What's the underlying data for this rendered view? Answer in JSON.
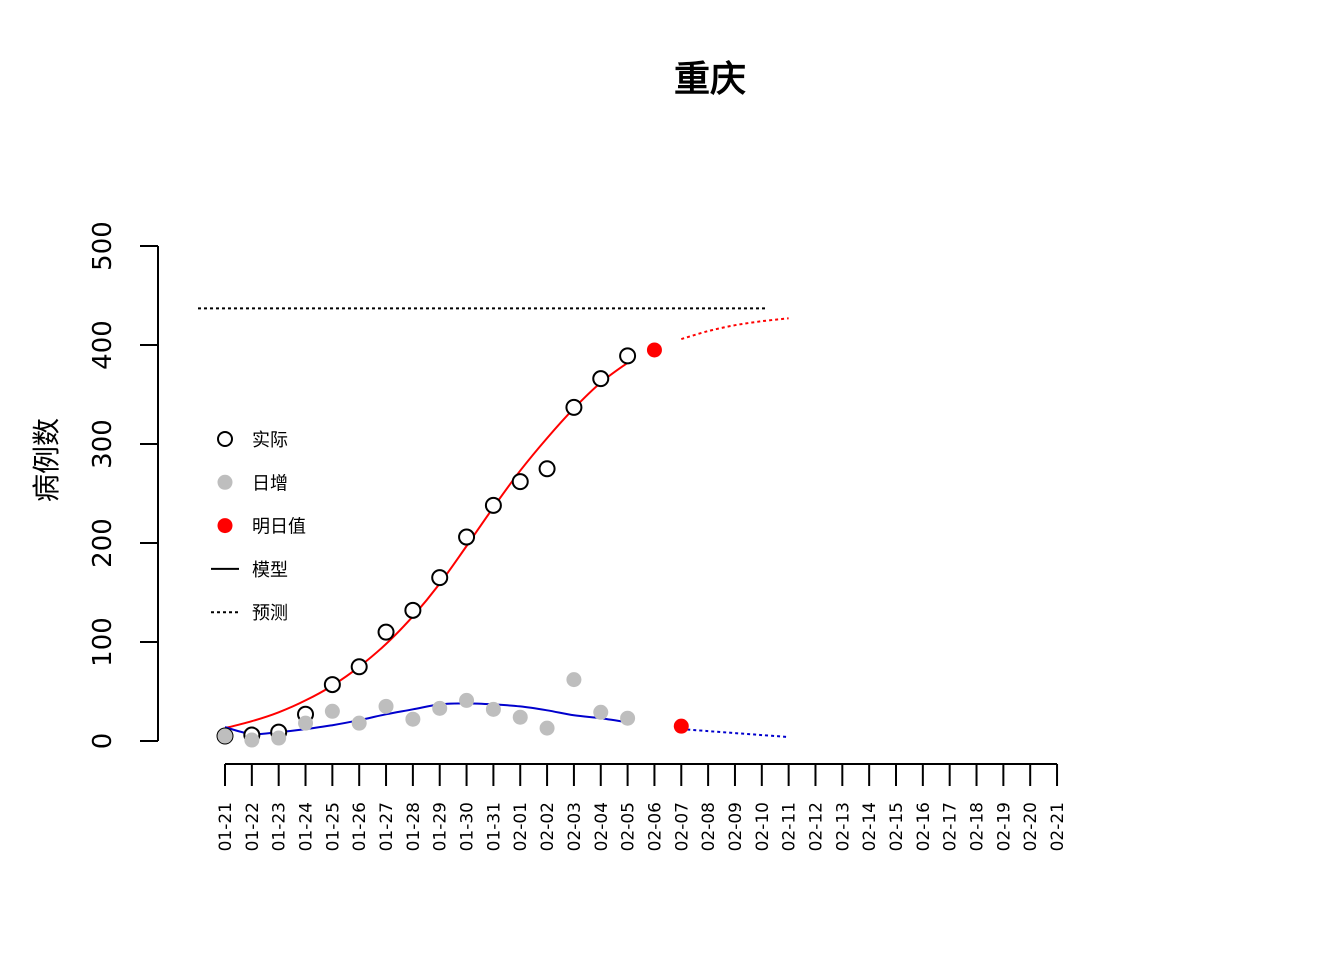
{
  "chart_data": {
    "type": "scatter",
    "title": "重庆",
    "xlabel": "",
    "ylabel": "病例数",
    "ylim": [
      0,
      500
    ],
    "yticks": [
      0,
      100,
      200,
      300,
      400,
      500
    ],
    "categories": [
      "01-21",
      "01-22",
      "01-23",
      "01-24",
      "01-25",
      "01-26",
      "01-27",
      "01-28",
      "01-29",
      "01-30",
      "01-31",
      "02-01",
      "02-02",
      "02-03",
      "02-04",
      "02-05",
      "02-06",
      "02-07",
      "02-08",
      "02-09",
      "02-10",
      "02-11",
      "02-12",
      "02-13",
      "02-14",
      "02-15",
      "02-16",
      "02-17",
      "02-18",
      "02-19",
      "02-20",
      "02-21"
    ],
    "series": [
      {
        "name": "实际",
        "style": "open-circle",
        "color": "#000000",
        "start": 0,
        "values": [
          5,
          6,
          9,
          27,
          57,
          75,
          110,
          132,
          165,
          206,
          238,
          262,
          275,
          337,
          366,
          389
        ]
      },
      {
        "name": "日增",
        "style": "filled-circle",
        "color": "#bebebe",
        "start": 0,
        "values": [
          5,
          1,
          3,
          18,
          30,
          18,
          35,
          22,
          33,
          41,
          32,
          24,
          13,
          62,
          29,
          23
        ]
      },
      {
        "name": "明日值",
        "style": "filled-circle",
        "color": "#ff0000",
        "start": 16,
        "values": [
          395,
          15
        ]
      }
    ],
    "model_lines": [
      {
        "color": "#ff0000",
        "dash": false,
        "start": 0,
        "values": [
          13,
          20,
          29,
          41,
          56,
          75,
          98,
          126,
          159,
          197,
          236,
          273,
          306,
          336,
          362,
          382
        ]
      },
      {
        "color": "#0000cd",
        "dash": false,
        "start": 0,
        "values": [
          14,
          7,
          9,
          12,
          16,
          21,
          27,
          32,
          37,
          38,
          37,
          35,
          31,
          26,
          23,
          19
        ]
      },
      {
        "color": "#ff0000",
        "dash": true,
        "start": 17,
        "values": [
          406,
          414,
          420,
          424,
          427
        ]
      },
      {
        "color": "#0000cd",
        "dash": true,
        "start": 17,
        "values": [
          12,
          10,
          8,
          6,
          4
        ]
      }
    ],
    "reference_line": {
      "y": 437,
      "x_end_index": 20,
      "dash": true,
      "color": "#000000"
    },
    "legend": {
      "placement": "left",
      "items": [
        {
          "label": "实际",
          "symbol": "open-circle",
          "color": "#000000"
        },
        {
          "label": "日增",
          "symbol": "filled-circle",
          "color": "#bebebe"
        },
        {
          "label": "明日值",
          "symbol": "filled-circle",
          "color": "#ff0000"
        },
        {
          "label": "模型",
          "symbol": "solid-line",
          "color": "#000000"
        },
        {
          "label": "预测",
          "symbol": "dotted-line",
          "color": "#000000"
        }
      ]
    }
  }
}
